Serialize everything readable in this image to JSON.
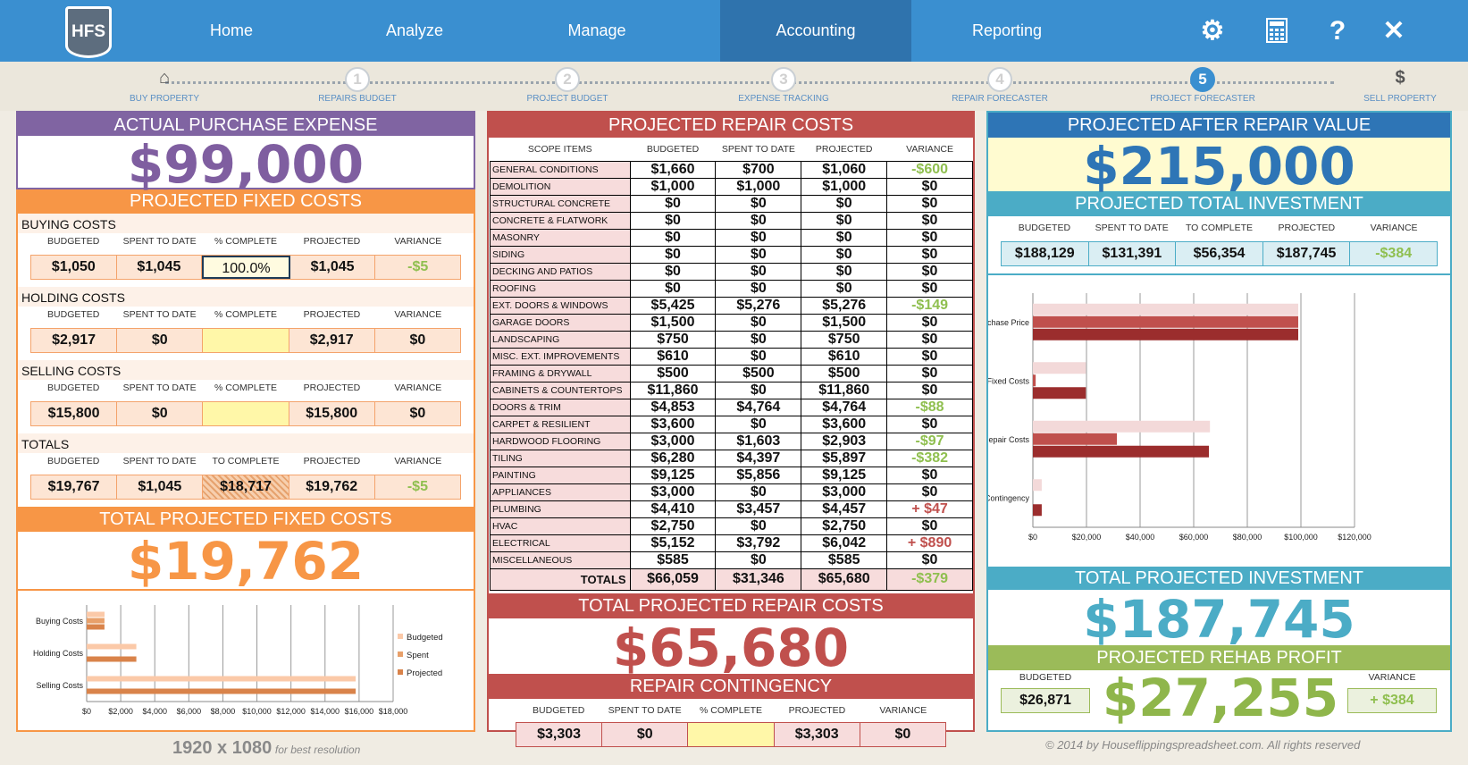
{
  "nav": {
    "logo": "HFS",
    "items": [
      "Home",
      "Analyze",
      "Manage",
      "Accounting",
      "Reporting"
    ],
    "active": "Accounting",
    "icons": [
      "gear-icon",
      "calculator-icon",
      "help-icon",
      "close-icon"
    ]
  },
  "steps": [
    {
      "num": "",
      "label": "BUY PROPERTY"
    },
    {
      "num": "1",
      "label": "REPAIRS BUDGET"
    },
    {
      "num": "2",
      "label": "PROJECT BUDGET"
    },
    {
      "num": "3",
      "label": "EXPENSE TRACKING"
    },
    {
      "num": "4",
      "label": "REPAIR FORECASTER"
    },
    {
      "num": "5",
      "label": "PROJECT FORECASTER"
    },
    {
      "num": "$",
      "label": "SELL PROPERTY"
    }
  ],
  "left": {
    "purchase_title": "ACTUAL PURCHASE EXPENSE",
    "purchase_value": "$99,000",
    "fixed_title": "PROJECTED FIXED COSTS",
    "buying": {
      "label": "BUYING COSTS",
      "cols": [
        "BUDGETED",
        "SPENT TO DATE",
        "% COMPLETE",
        "PROJECTED",
        "VARIANCE"
      ],
      "vals": [
        "$1,050",
        "$1,045",
        "100.0%",
        "$1,045",
        "-$5"
      ]
    },
    "holding": {
      "label": "HOLDING COSTS",
      "cols": [
        "BUDGETED",
        "SPENT TO DATE",
        "% COMPLETE",
        "PROJECTED",
        "VARIANCE"
      ],
      "vals": [
        "$2,917",
        "$0",
        "",
        "$2,917",
        "$0"
      ]
    },
    "selling": {
      "label": "SELLING COSTS",
      "cols": [
        "BUDGETED",
        "SPENT TO DATE",
        "% COMPLETE",
        "PROJECTED",
        "VARIANCE"
      ],
      "vals": [
        "$15,800",
        "$0",
        "",
        "$15,800",
        "$0"
      ]
    },
    "totals": {
      "label": "TOTALS",
      "cols": [
        "BUDGETED",
        "SPENT TO DATE",
        "TO COMPLETE",
        "PROJECTED",
        "VARIANCE"
      ],
      "vals": [
        "$19,767",
        "$1,045",
        "$18,717",
        "$19,762",
        "-$5"
      ]
    },
    "total_fixed_title": "TOTAL PROJECTED FIXED COSTS",
    "total_fixed_value": "$19,762"
  },
  "middle": {
    "title": "PROJECTED REPAIR COSTS",
    "cols": [
      "SCOPE ITEMS",
      "BUDGETED",
      "SPENT TO DATE",
      "PROJECTED",
      "VARIANCE"
    ],
    "rows": [
      [
        "GENERAL CONDITIONS",
        "$1,660",
        "$700",
        "$1,060",
        "-$600"
      ],
      [
        "DEMOLITION",
        "$1,000",
        "$1,000",
        "$1,000",
        "$0"
      ],
      [
        "STRUCTURAL CONCRETE",
        "$0",
        "$0",
        "$0",
        "$0"
      ],
      [
        "CONCRETE & FLATWORK",
        "$0",
        "$0",
        "$0",
        "$0"
      ],
      [
        "MASONRY",
        "$0",
        "$0",
        "$0",
        "$0"
      ],
      [
        "SIDING",
        "$0",
        "$0",
        "$0",
        "$0"
      ],
      [
        "DECKING AND PATIOS",
        "$0",
        "$0",
        "$0",
        "$0"
      ],
      [
        "ROOFING",
        "$0",
        "$0",
        "$0",
        "$0"
      ],
      [
        "EXT. DOORS & WINDOWS",
        "$5,425",
        "$5,276",
        "$5,276",
        "-$149"
      ],
      [
        "GARAGE DOORS",
        "$1,500",
        "$0",
        "$1,500",
        "$0"
      ],
      [
        "LANDSCAPING",
        "$750",
        "$0",
        "$750",
        "$0"
      ],
      [
        "MISC. EXT. IMPROVEMENTS",
        "$610",
        "$0",
        "$610",
        "$0"
      ],
      [
        "FRAMING & DRYWALL",
        "$500",
        "$500",
        "$500",
        "$0"
      ],
      [
        "CABINETS & COUNTERTOPS",
        "$11,860",
        "$0",
        "$11,860",
        "$0"
      ],
      [
        "DOORS & TRIM",
        "$4,853",
        "$4,764",
        "$4,764",
        "-$88"
      ],
      [
        "CARPET & RESILIENT",
        "$3,600",
        "$0",
        "$3,600",
        "$0"
      ],
      [
        "HARDWOOD FLOORING",
        "$3,000",
        "$1,603",
        "$2,903",
        "-$97"
      ],
      [
        "TILING",
        "$6,280",
        "$4,397",
        "$5,897",
        "-$382"
      ],
      [
        "PAINTING",
        "$9,125",
        "$5,856",
        "$9,125",
        "$0"
      ],
      [
        "APPLIANCES",
        "$3,000",
        "$0",
        "$3,000",
        "$0"
      ],
      [
        "PLUMBING",
        "$4,410",
        "$3,457",
        "$4,457",
        "+ $47"
      ],
      [
        "HVAC",
        "$2,750",
        "$0",
        "$2,750",
        "$0"
      ],
      [
        "ELECTRICAL",
        "$5,152",
        "$3,792",
        "$6,042",
        "+ $890"
      ],
      [
        "MISCELLANEOUS",
        "$585",
        "$0",
        "$585",
        "$0"
      ]
    ],
    "totals": [
      "TOTALS",
      "$66,059",
      "$31,346",
      "$65,680",
      "-$379"
    ],
    "total_title": "TOTAL PROJECTED REPAIR COSTS",
    "total_value": "$65,680",
    "contingency_title": "REPAIR CONTINGENCY",
    "contingency_cols": [
      "BUDGETED",
      "SPENT TO DATE",
      "% COMPLETE",
      "PROJECTED",
      "VARIANCE"
    ],
    "contingency_vals": [
      "$3,303",
      "$0",
      "",
      "$3,303",
      "$0"
    ]
  },
  "right": {
    "arv_title": "PROJECTED AFTER REPAIR VALUE",
    "arv_value": "$215,000",
    "inv_title": "PROJECTED TOTAL INVESTMENT",
    "inv_cols": [
      "BUDGETED",
      "SPENT TO DATE",
      "TO COMPLETE",
      "PROJECTED",
      "VARIANCE"
    ],
    "inv_vals": [
      "$188,129",
      "$131,391",
      "$56,354",
      "$187,745",
      "-$384"
    ],
    "total_inv_title": "TOTAL PROJECTED INVESTMENT",
    "total_inv_value": "$187,745",
    "profit_title": "PROJECTED REHAB PROFIT",
    "profit_budget_label": "BUDGETED",
    "profit_budget": "$26,871",
    "profit_value": "$27,255",
    "profit_var_label": "VARIANCE",
    "profit_var": "+ $384"
  },
  "footer": {
    "resolution": "1920 x 1080",
    "resolution_note": "for best resolution",
    "copyright": "© 2014 by Houseflippingspreadsheet.com. All rights reserved"
  },
  "chart_data": [
    {
      "type": "bar",
      "orientation": "horizontal",
      "categories": [
        "Buying Costs",
        "Holding Costs",
        "Selling Costs"
      ],
      "series": [
        {
          "name": "Budgeted",
          "values": [
            1050,
            2917,
            15800
          ],
          "color": "#fbc9a8"
        },
        {
          "name": "Spent",
          "values": [
            1045,
            0,
            0
          ],
          "color": "#e8a06a"
        },
        {
          "name": "Projected",
          "values": [
            1045,
            2917,
            15800
          ],
          "color": "#d9834a"
        }
      ],
      "xlim": [
        0,
        18000
      ],
      "xticks": [
        "$0",
        "$2,000",
        "$4,000",
        "$6,000",
        "$8,000",
        "$10,000",
        "$12,000",
        "$14,000",
        "$16,000",
        "$18,000"
      ],
      "legend": "right"
    },
    {
      "type": "bar",
      "orientation": "horizontal",
      "categories": [
        "Purchase Price",
        "Fixed Costs",
        "Repair Costs",
        "Repair Contingency"
      ],
      "series": [
        {
          "name": "Budgeted",
          "values": [
            99000,
            19767,
            66059,
            3303
          ],
          "color": "#f3d9d9"
        },
        {
          "name": "Spent",
          "values": [
            99000,
            1045,
            31346,
            0
          ],
          "color": "#c0504d"
        },
        {
          "name": "Projected",
          "values": [
            99000,
            19762,
            65680,
            3303
          ],
          "color": "#9b2d2d"
        }
      ],
      "xlim": [
        0,
        120000
      ],
      "xticks": [
        "$0",
        "$20,000",
        "$40,000",
        "$60,000",
        "$80,000",
        "$100,000",
        "$120,000"
      ]
    }
  ]
}
